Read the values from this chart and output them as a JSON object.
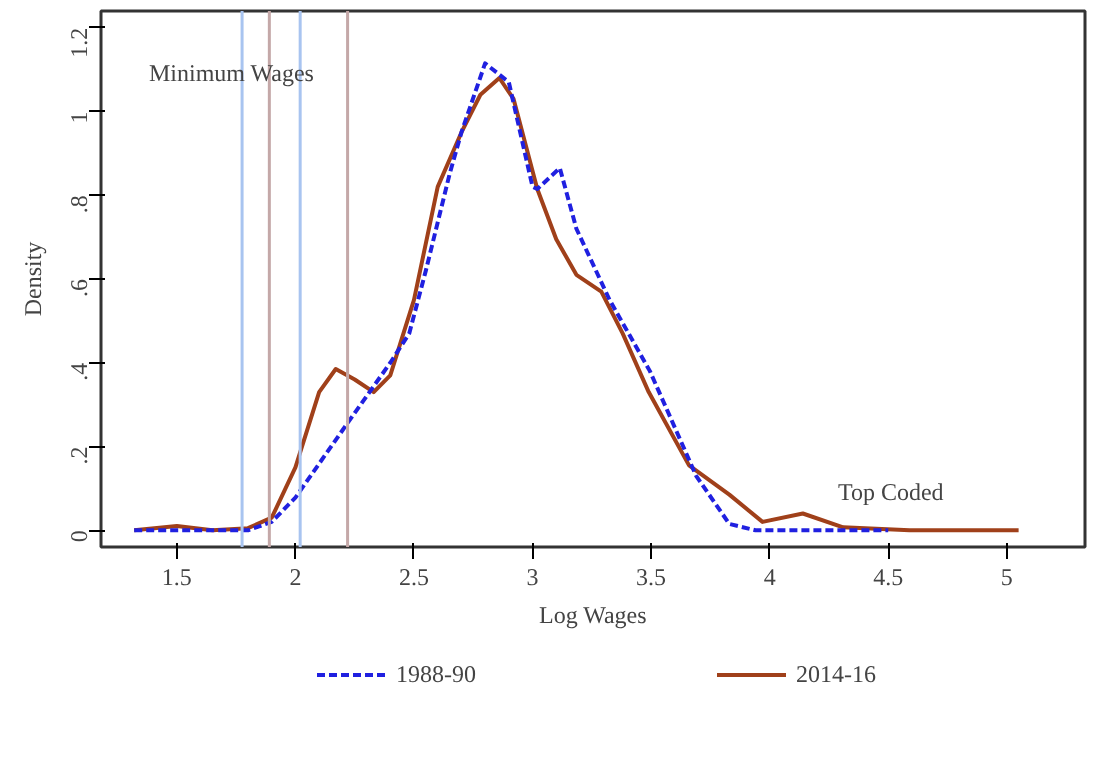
{
  "chart_data": {
    "type": "line",
    "xlabel": "Log Wages",
    "ylabel": "Density",
    "xlim": [
      1.18,
      5.33
    ],
    "ylim": [
      -0.04,
      1.24
    ],
    "xticks": [
      1.5,
      2,
      2.5,
      3,
      3.5,
      4,
      4.5,
      5
    ],
    "yticks": [
      {
        "value": 0,
        "label": "0"
      },
      {
        "value": 0.2,
        "label": ".2"
      },
      {
        "value": 0.4,
        "label": ".4"
      },
      {
        "value": 0.6,
        "label": ".6"
      },
      {
        "value": 0.8,
        "label": ".8"
      },
      {
        "value": 1,
        "label": "1"
      },
      {
        "value": 1.2,
        "label": "1.2"
      }
    ],
    "grid": false,
    "legend": "bottom",
    "marker": "none",
    "series": [
      {
        "name": "1988-90",
        "color": "#2020e0",
        "line_style": "dashed",
        "x": [
          1.32,
          1.5,
          1.8,
          1.9,
          2.0,
          2.2,
          2.4,
          2.48,
          2.55,
          2.65,
          2.7,
          2.8,
          2.9,
          3.0,
          3.02,
          3.115,
          3.185,
          3.325,
          3.495,
          3.69,
          3.83,
          3.94,
          4.5
        ],
        "values": [
          0,
          0,
          0,
          0.02,
          0.078,
          0.24,
          0.4,
          0.47,
          0.62,
          0.85,
          0.95,
          1.115,
          1.07,
          0.82,
          0.815,
          0.865,
          0.72,
          0.55,
          0.38,
          0.13,
          0.015,
          0,
          0
        ]
      },
      {
        "name": "2014-16",
        "color": "#a0401a",
        "line_style": "solid",
        "x": [
          1.32,
          1.5,
          1.65,
          1.8,
          1.9,
          2.0,
          2.1,
          2.17,
          2.25,
          2.33,
          2.4,
          2.5,
          2.6,
          2.7,
          2.78,
          2.86,
          2.92,
          3.02,
          3.1,
          3.185,
          3.29,
          3.38,
          3.49,
          3.66,
          3.83,
          3.97,
          4.14,
          4.31,
          4.59,
          5.05
        ],
        "values": [
          0,
          0.01,
          0,
          0.005,
          0.03,
          0.15,
          0.33,
          0.385,
          0.36,
          0.33,
          0.37,
          0.55,
          0.82,
          0.95,
          1.04,
          1.08,
          1.03,
          0.815,
          0.695,
          0.61,
          0.57,
          0.47,
          0.33,
          0.155,
          0.085,
          0.02,
          0.04,
          0.007,
          0,
          0
        ]
      }
    ],
    "ref_lines": [
      {
        "axis": "x",
        "value": 1.775,
        "label": null,
        "color": "#a8c4f0"
      },
      {
        "axis": "x",
        "value": 1.89,
        "label": null,
        "color": "#c4a8a8"
      },
      {
        "axis": "x",
        "value": 2.02,
        "label": null,
        "color": "#a8c4f0"
      },
      {
        "axis": "x",
        "value": 2.22,
        "label": null,
        "color": "#c4a8a8"
      }
    ],
    "annotations": [
      "Minimum  Wages",
      {
        "text": "Top Coded",
        "x": 4.3,
        "y": 0.01
      }
    ]
  }
}
